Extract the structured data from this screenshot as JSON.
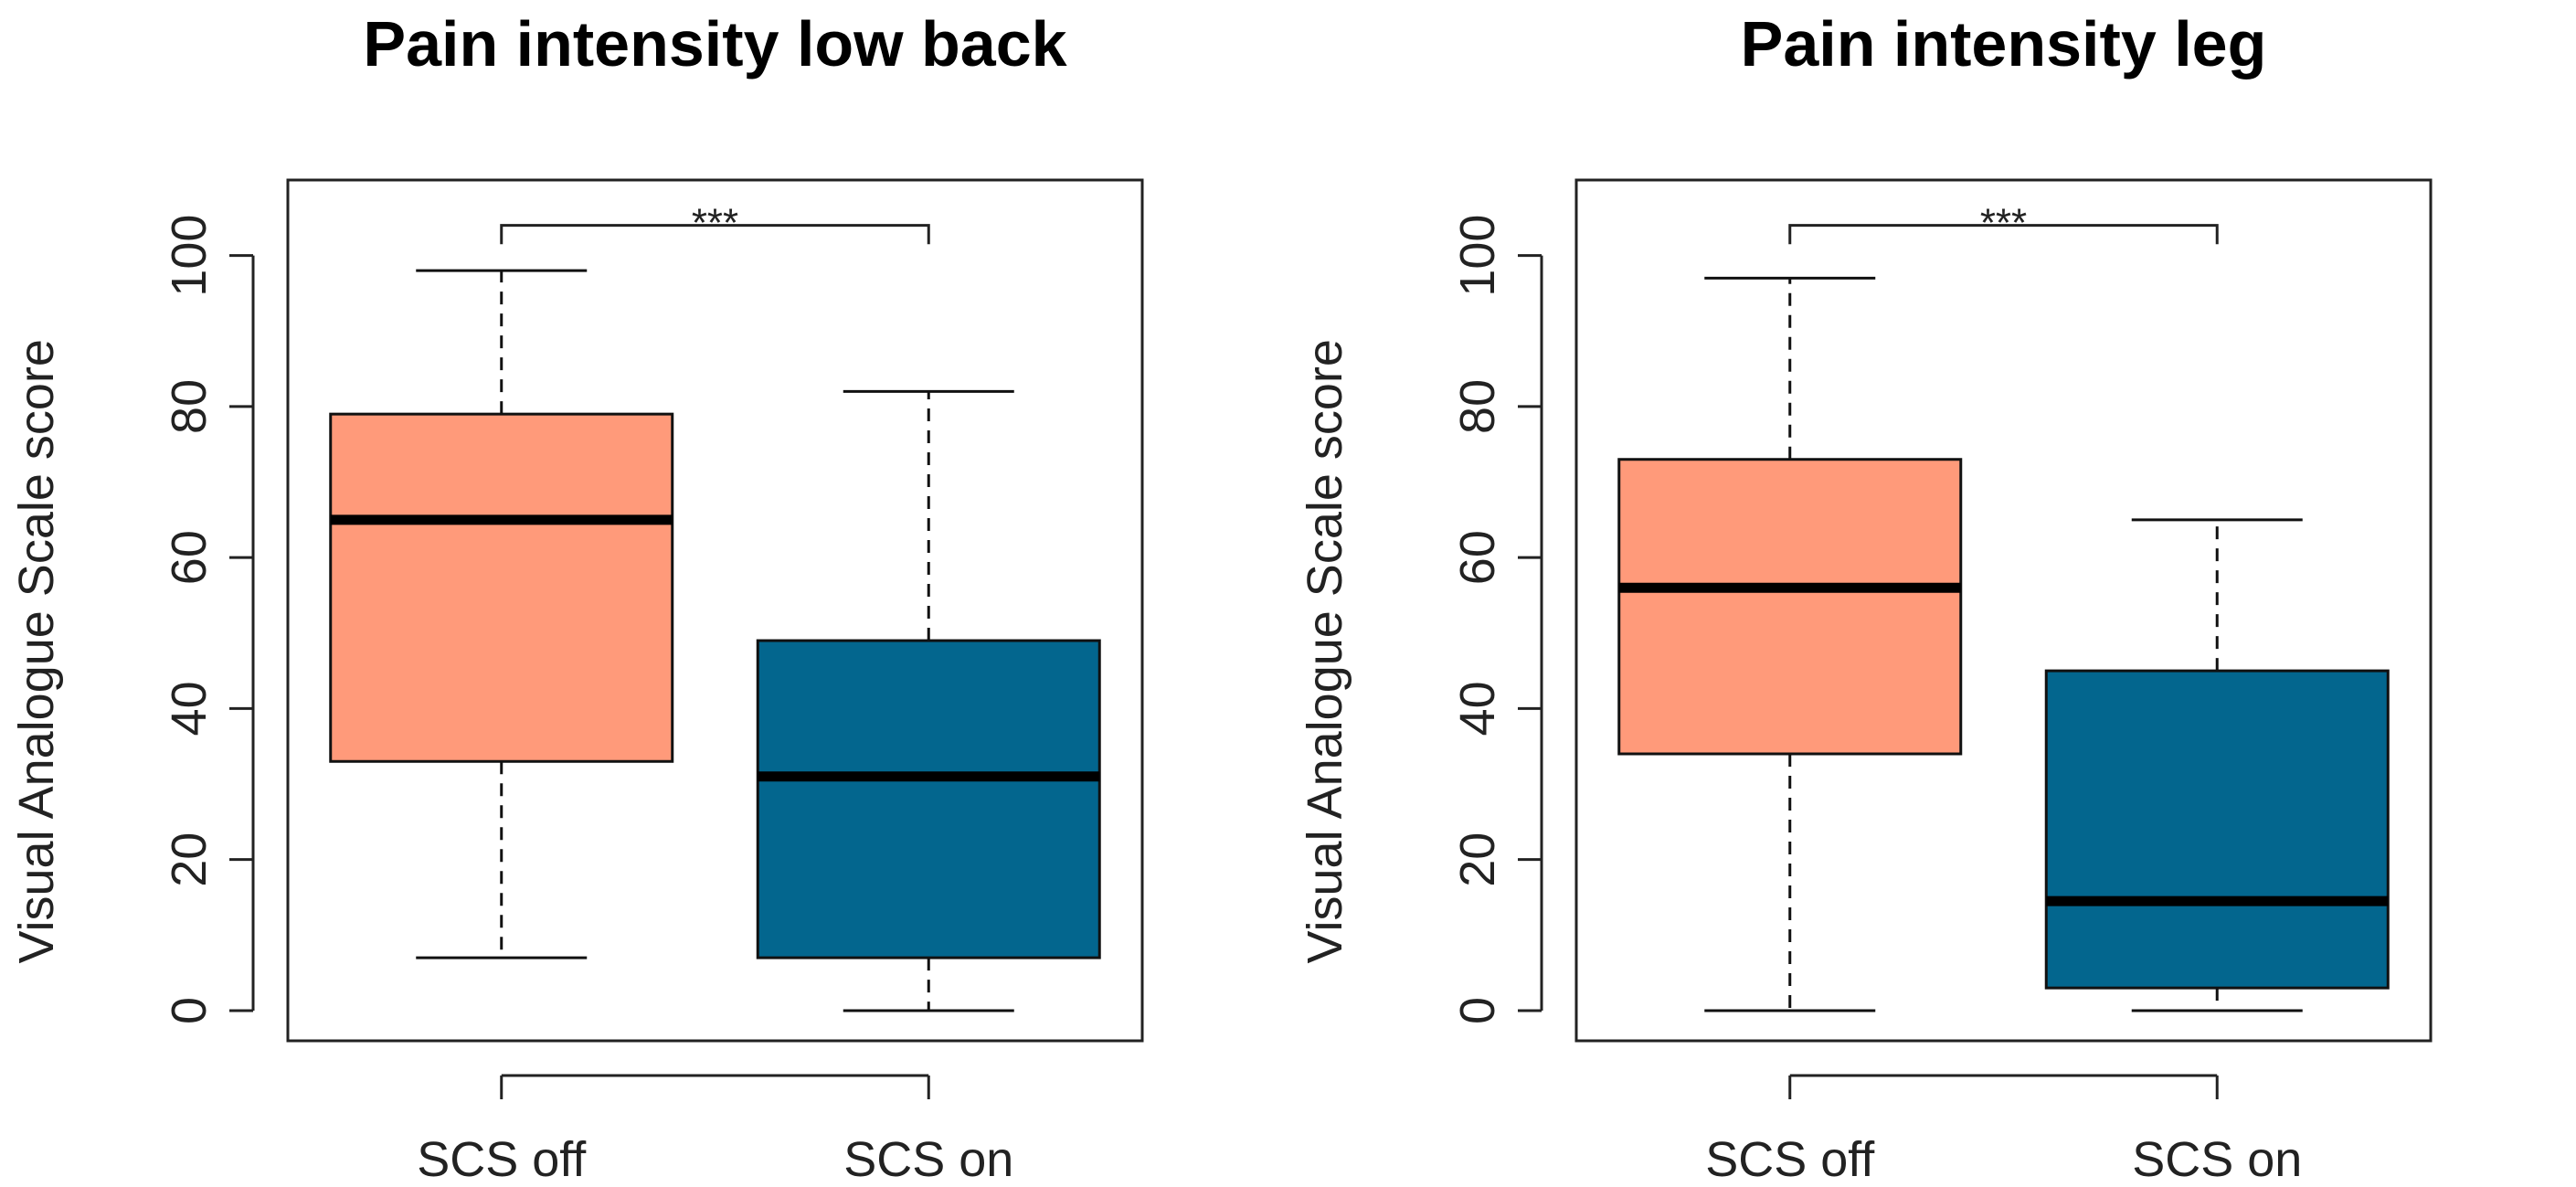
{
  "chart_data": [
    {
      "type": "boxplot",
      "title": "Pain intensity low back",
      "xlabel": "",
      "ylabel": "Visual Analogue Scale score",
      "ylim": [
        -4,
        110
      ],
      "yticks": [
        0,
        20,
        40,
        60,
        80,
        100
      ],
      "categories": [
        "SCS off",
        "SCS on"
      ],
      "boxes": [
        {
          "name": "SCS off",
          "color": "#ff9a7a",
          "whisker_low": 7,
          "q1": 33,
          "median": 65,
          "q3": 79,
          "whisker_high": 98
        },
        {
          "name": "SCS on",
          "color": "#03668e",
          "whisker_low": 0,
          "q1": 7,
          "median": 31,
          "q3": 49,
          "whisker_high": 82
        }
      ],
      "significance": {
        "between": [
          "SCS off",
          "SCS on"
        ],
        "y": 104,
        "label": "***"
      }
    },
    {
      "type": "boxplot",
      "title": "Pain intensity leg",
      "xlabel": "",
      "ylabel": "Visual Analogue Scale score",
      "ylim": [
        -4,
        110
      ],
      "yticks": [
        0,
        20,
        40,
        60,
        80,
        100
      ],
      "categories": [
        "SCS off",
        "SCS on"
      ],
      "boxes": [
        {
          "name": "SCS off",
          "color": "#ff9a7a",
          "whisker_low": 0,
          "q1": 34,
          "median": 56,
          "q3": 73,
          "whisker_high": 97
        },
        {
          "name": "SCS on",
          "color": "#03668e",
          "whisker_low": 0,
          "q1": 3,
          "median": 14.5,
          "q3": 45,
          "whisker_high": 65
        }
      ],
      "significance": {
        "between": [
          "SCS off",
          "SCS on"
        ],
        "y": 104,
        "label": "***"
      }
    }
  ]
}
